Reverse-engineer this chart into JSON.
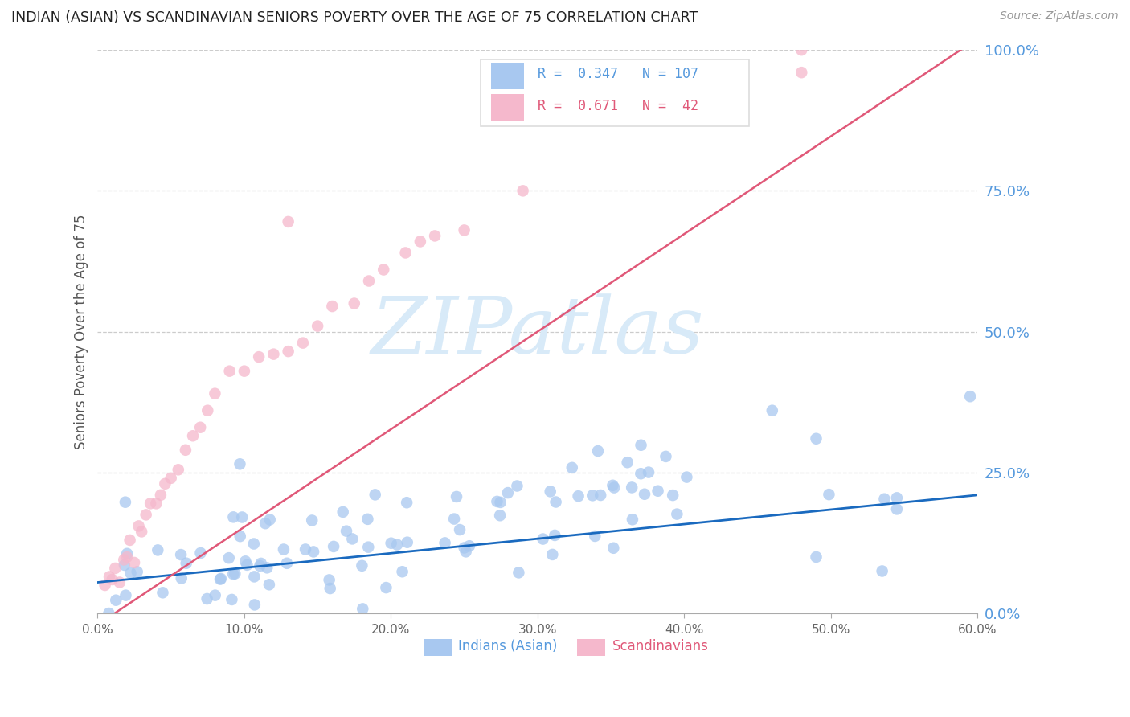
{
  "title": "INDIAN (ASIAN) VS SCANDINAVIAN SENIORS POVERTY OVER THE AGE OF 75 CORRELATION CHART",
  "source": "Source: ZipAtlas.com",
  "ylabel": "Seniors Poverty Over the Age of 75",
  "xlim": [
    0.0,
    0.6
  ],
  "ylim": [
    0.0,
    1.0
  ],
  "indian_R": 0.347,
  "indian_N": 107,
  "scand_R": 0.671,
  "scand_N": 42,
  "indian_color": "#a8c8f0",
  "scand_color": "#f5b8cc",
  "indian_line_color": "#1a6abf",
  "scand_line_color": "#e05878",
  "title_color": "#222222",
  "source_color": "#999999",
  "right_axis_color": "#5599dd",
  "watermark_color": "#d8eaf8",
  "legend_indian_label": "Indians (Asian)",
  "legend_scand_label": "Scandinavians",
  "ind_line_x0": 0.0,
  "ind_line_y0": 0.055,
  "ind_line_x1": 0.6,
  "ind_line_y1": 0.21,
  "sc_line_x0": 0.0,
  "sc_line_y0": -0.02,
  "sc_line_x1": 0.6,
  "sc_line_y1": 1.02
}
